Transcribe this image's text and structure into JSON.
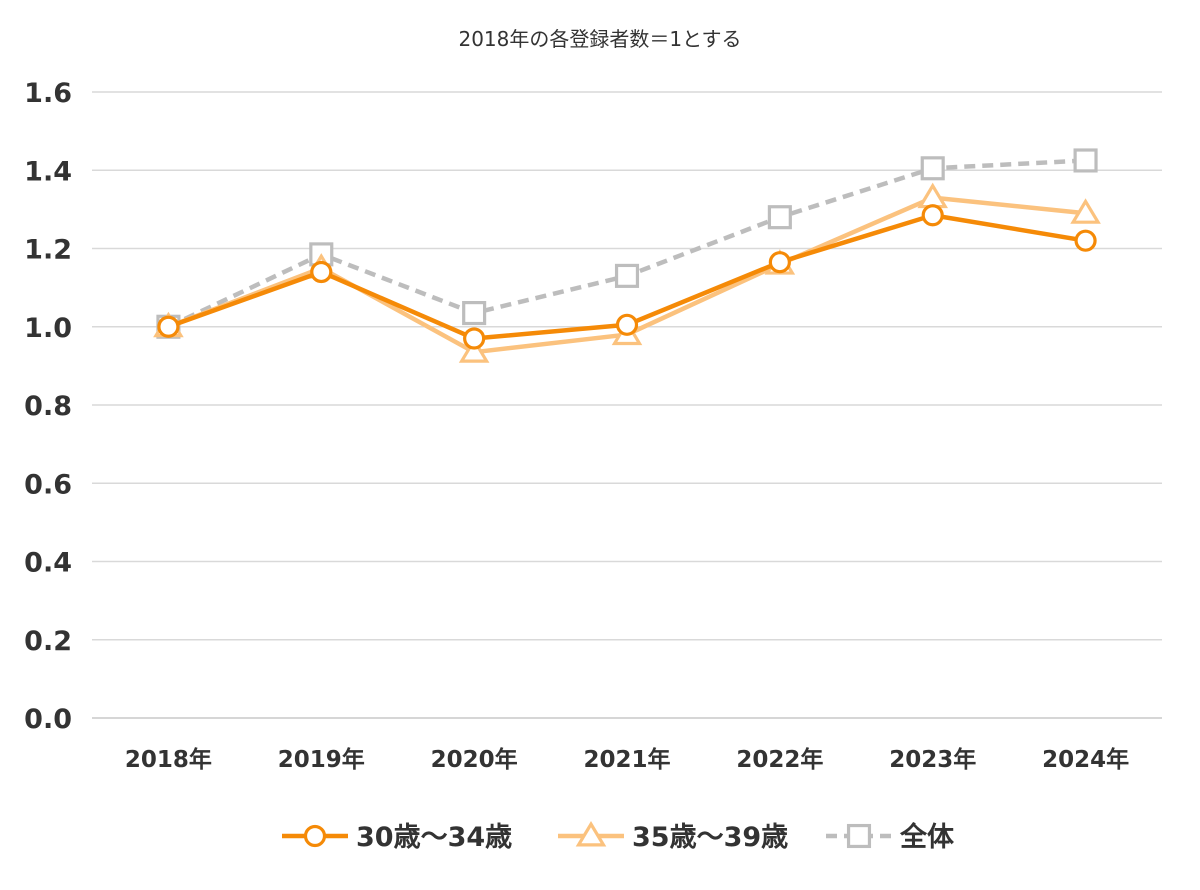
{
  "chart_data": {
    "type": "line",
    "title": "2018年の各登録者数＝1とする",
    "xlabel": "",
    "ylabel": "",
    "categories": [
      "2018年",
      "2019年",
      "2020年",
      "2021年",
      "2022年",
      "2023年",
      "2024年"
    ],
    "ylim": [
      0,
      1.6
    ],
    "yticks": [
      "0.0",
      "0.2",
      "0.4",
      "0.6",
      "0.8",
      "1.0",
      "1.2",
      "1.4",
      "1.6"
    ],
    "grid": true,
    "legend_position": "bottom",
    "series": [
      {
        "name": "30歳～34歳",
        "values": [
          1.0,
          1.14,
          0.97,
          1.005,
          1.165,
          1.285,
          1.22
        ],
        "color": "#F58A07",
        "marker": "circle",
        "line_style": "solid"
      },
      {
        "name": "35歳～39歳",
        "values": [
          1.0,
          1.15,
          0.935,
          0.98,
          1.16,
          1.33,
          1.29
        ],
        "color": "#FBC27E",
        "marker": "triangle",
        "line_style": "solid"
      },
      {
        "name": "全体",
        "values": [
          1.0,
          1.185,
          1.035,
          1.13,
          1.28,
          1.405,
          1.425
        ],
        "color": "#BDBDBD",
        "marker": "square",
        "line_style": "dashed"
      }
    ]
  }
}
